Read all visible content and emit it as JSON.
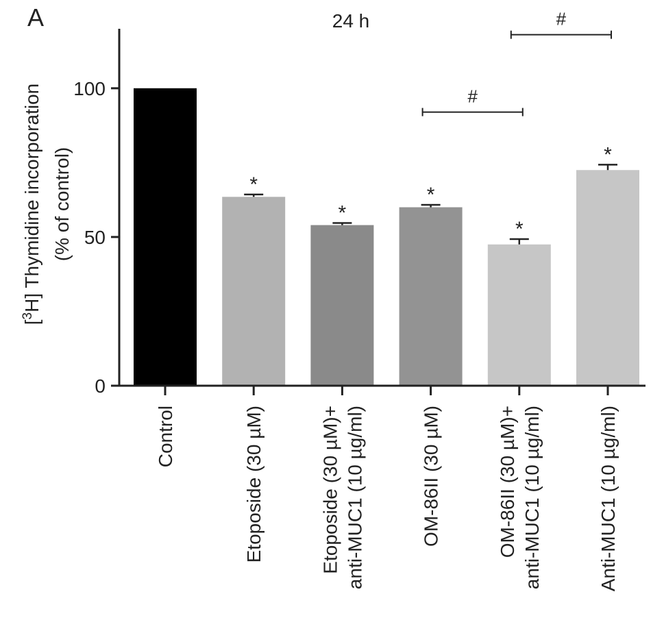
{
  "panel_label": "A",
  "chart_data": {
    "type": "bar",
    "title": "24 h",
    "ylabel_prefix": "[",
    "ylabel_sup": "3",
    "ylabel_main": "H] Thymidine incorporation",
    "ylabel_line2": "(% of control)",
    "ylim": [
      0,
      120
    ],
    "yticks": [
      0,
      50,
      100
    ],
    "categories": [
      [
        "Control"
      ],
      [
        "Etoposide (30 µM)"
      ],
      [
        "Etoposide (30 µM)+",
        "anti-MUC1 (10 µg/ml)"
      ],
      [
        "OM-86II (30 µM)"
      ],
      [
        "OM-86II (30 µM)+",
        "anti-MUC1 (10 µg/ml)"
      ],
      [
        "Anti-MUC1 (10 µg/ml)"
      ]
    ],
    "values": [
      100,
      63.5,
      54,
      60,
      47.5,
      72.5
    ],
    "errors": [
      0,
      0.8,
      0.7,
      0.8,
      1.8,
      1.8
    ],
    "significance_marks": [
      "",
      "*",
      "*",
      "*",
      "*",
      "*"
    ],
    "comparisons": [
      {
        "from": 3,
        "to": 4,
        "label": "#",
        "y": 92
      },
      {
        "from": 4,
        "to": 5,
        "label": "#",
        "y": 118
      }
    ],
    "colors": [
      "#000000",
      "#b2b2b2",
      "#8a8a8a",
      "#939393",
      "#c6c6c6",
      "#c6c6c6"
    ],
    "grid": false,
    "legend": "none"
  }
}
